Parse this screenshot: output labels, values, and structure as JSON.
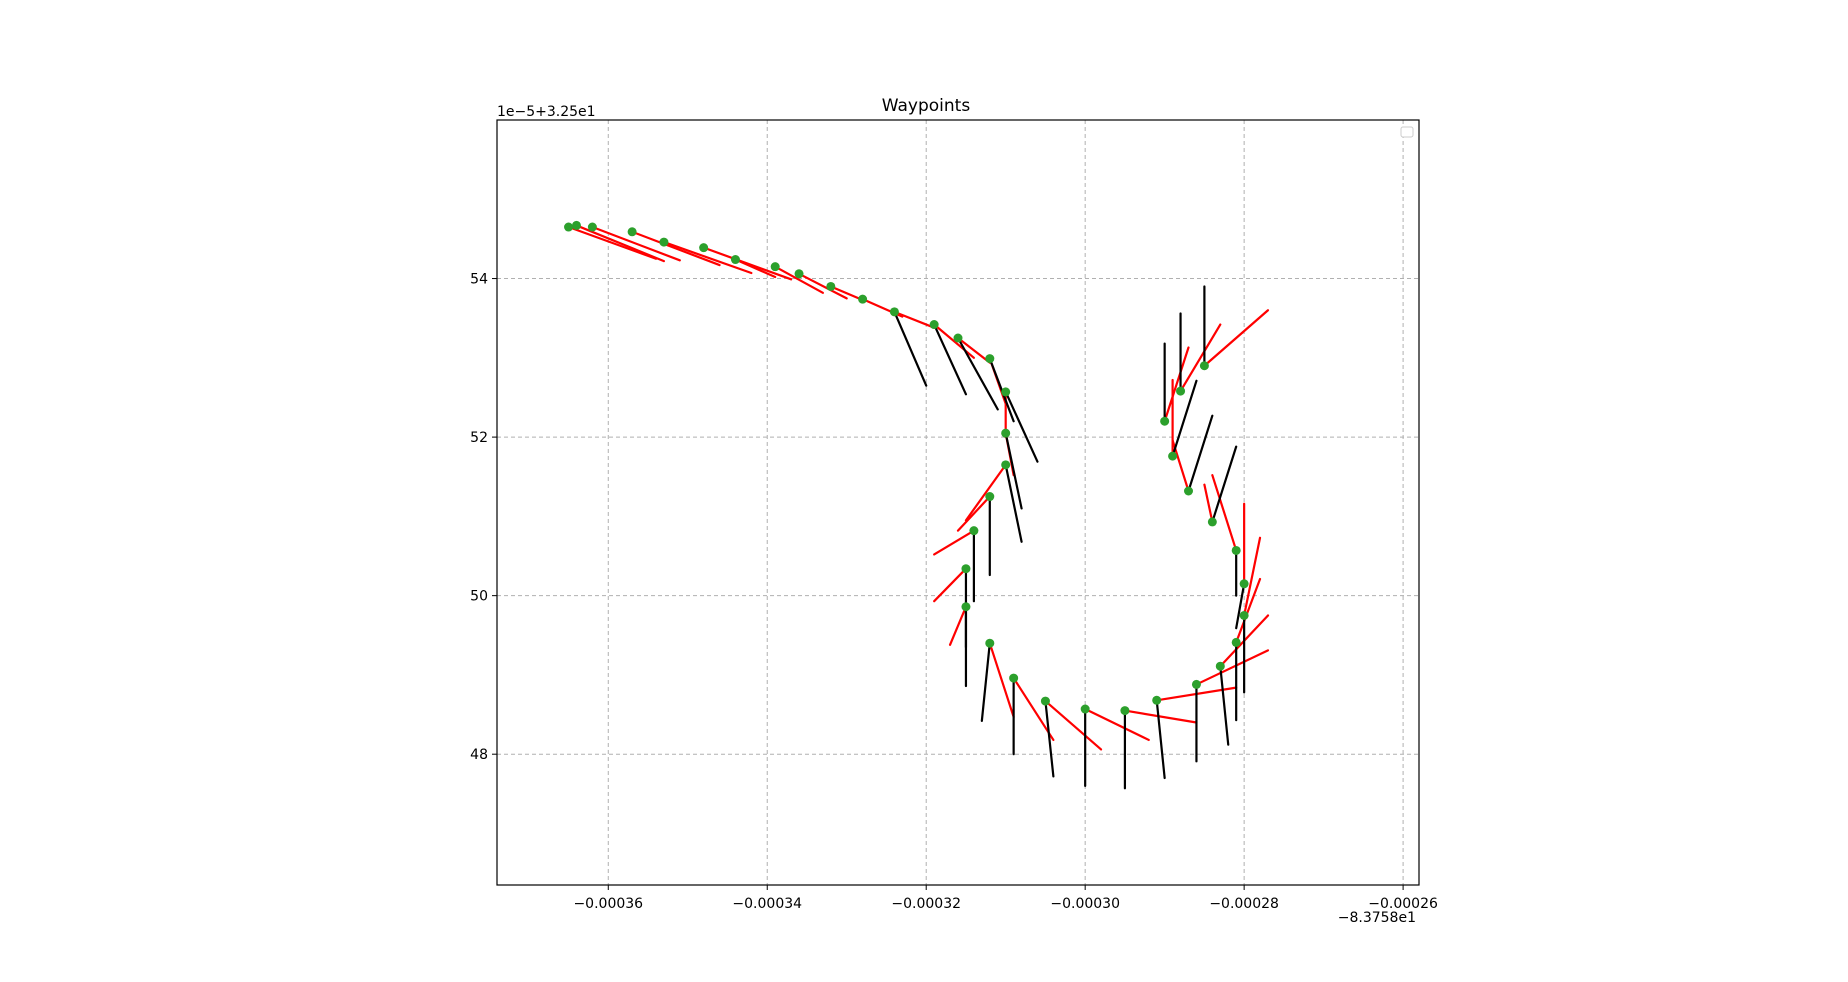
{
  "chart_data": {
    "type": "scatter",
    "title": "Waypoints",
    "x_offset_label": "−8.3758e1",
    "y_offset_label": "1e−5+3.25e1",
    "x_unit_scale": "relative to -83.758",
    "y_unit_scale": "1e-5, relative to 32.5",
    "xlim": [
      -0.000374,
      -0.000258
    ],
    "ylim": [
      46.35,
      56.0
    ],
    "xticks": [
      -0.00036,
      -0.00034,
      -0.00032,
      -0.0003,
      -0.00028,
      -0.00026
    ],
    "xtick_labels": [
      "−0.00036",
      "−0.00034",
      "−0.00032",
      "−0.00030",
      "−0.00028",
      "−0.00026"
    ],
    "yticks": [
      48,
      50,
      52,
      54
    ],
    "ytick_labels": [
      "48",
      "50",
      "52",
      "54"
    ],
    "grid": true,
    "grid_style": "dashed",
    "legend": "top-right (empty)",
    "colors": {
      "points": "#2ca02c",
      "heading_red": "#ff0000",
      "heading_black": "#000000",
      "grid": "#b0b0b0"
    },
    "waypoints": [
      {
        "x": -0.000365,
        "y": 54.65,
        "red": [
          -0.000354,
          54.25
        ],
        "black": null
      },
      {
        "x": -0.000364,
        "y": 54.67,
        "red": [
          -0.000353,
          54.22
        ],
        "black": null
      },
      {
        "x": -0.000362,
        "y": 54.65,
        "red": [
          -0.000351,
          54.23
        ],
        "black": null
      },
      {
        "x": -0.000357,
        "y": 54.59,
        "red": [
          -0.000346,
          54.17
        ],
        "black": null
      },
      {
        "x": -0.000353,
        "y": 54.46,
        "red": [
          -0.000342,
          54.07
        ],
        "black": null
      },
      {
        "x": -0.000348,
        "y": 54.39,
        "red": [
          -0.000337,
          53.99
        ],
        "black": null
      },
      {
        "x": -0.000344,
        "y": 54.24,
        "red": [
          -0.000339,
          54.02
        ],
        "black": null
      },
      {
        "x": -0.000339,
        "y": 54.15,
        "red": [
          -0.000333,
          53.82
        ],
        "black": null
      },
      {
        "x": -0.000336,
        "y": 54.06,
        "red": [
          -0.00033,
          53.75
        ],
        "black": null
      },
      {
        "x": -0.000332,
        "y": 53.9,
        "red": [
          -0.000328,
          53.73
        ],
        "black": null
      },
      {
        "x": -0.000328,
        "y": 53.74,
        "red": [
          -0.000323,
          53.52
        ],
        "black": null
      },
      {
        "x": -0.000324,
        "y": 53.58,
        "red": [
          -0.000319,
          53.38
        ],
        "black": [
          -0.00032,
          52.65
        ]
      },
      {
        "x": -0.000319,
        "y": 53.42,
        "red": [
          -0.000314,
          53.0
        ],
        "black": [
          -0.000315,
          52.54
        ]
      },
      {
        "x": -0.000316,
        "y": 53.25,
        "red": [
          -0.000312,
          52.94
        ],
        "black": [
          -0.000311,
          52.35
        ]
      },
      {
        "x": -0.000312,
        "y": 52.99,
        "red": [
          -0.00031,
          52.42
        ],
        "black": [
          -0.000309,
          52.2
        ]
      },
      {
        "x": -0.00031,
        "y": 52.57,
        "red": [
          -0.00031,
          52.0
        ],
        "black": [
          -0.000306,
          51.69
        ]
      },
      {
        "x": -0.00031,
        "y": 52.05,
        "red": [
          -0.000309,
          51.52
        ],
        "black": [
          -0.000308,
          51.1
        ]
      },
      {
        "x": -0.00031,
        "y": 51.65,
        "red": [
          -0.000315,
          50.95
        ],
        "black": [
          -0.000308,
          50.68
        ]
      },
      {
        "x": -0.000312,
        "y": 51.25,
        "red": [
          -0.000316,
          50.82
        ],
        "black": [
          -0.000312,
          50.26
        ]
      },
      {
        "x": -0.000314,
        "y": 50.82,
        "red": [
          -0.000319,
          50.52
        ],
        "black": [
          -0.000314,
          49.93
        ]
      },
      {
        "x": -0.000315,
        "y": 50.34,
        "red": [
          -0.000319,
          49.93
        ],
        "black": [
          -0.000315,
          49.35
        ]
      },
      {
        "x": -0.000315,
        "y": 49.86,
        "red": [
          -0.000317,
          49.38
        ],
        "black": [
          -0.000315,
          48.86
        ]
      },
      {
        "x": -0.000312,
        "y": 49.4,
        "red": [
          -0.000309,
          48.47
        ],
        "black": [
          -0.000313,
          48.42
        ]
      },
      {
        "x": -0.000309,
        "y": 48.96,
        "red": [
          -0.000304,
          48.18
        ],
        "black": [
          -0.000309,
          48.0
        ]
      },
      {
        "x": -0.000305,
        "y": 48.67,
        "red": [
          -0.000298,
          48.06
        ],
        "black": [
          -0.000304,
          47.72
        ]
      },
      {
        "x": -0.0003,
        "y": 48.57,
        "red": [
          -0.000292,
          48.18
        ],
        "black": [
          -0.0003,
          47.6
        ]
      },
      {
        "x": -0.000295,
        "y": 48.55,
        "red": [
          -0.000286,
          48.4
        ],
        "black": [
          -0.000295,
          47.57
        ]
      },
      {
        "x": -0.000291,
        "y": 48.68,
        "red": [
          -0.000281,
          48.84
        ],
        "black": [
          -0.00029,
          47.7
        ]
      },
      {
        "x": -0.000286,
        "y": 48.88,
        "red": [
          -0.000277,
          49.31
        ],
        "black": [
          -0.000286,
          47.91
        ]
      },
      {
        "x": -0.000283,
        "y": 49.11,
        "red": [
          -0.000277,
          49.75
        ],
        "black": [
          -0.000282,
          48.12
        ]
      },
      {
        "x": -0.000281,
        "y": 49.41,
        "red": [
          -0.000278,
          50.21
        ],
        "black": [
          -0.000281,
          48.43
        ]
      },
      {
        "x": -0.00028,
        "y": 49.75,
        "red": [
          -0.000278,
          50.73
        ],
        "black": [
          -0.00028,
          48.78
        ]
      },
      {
        "x": -0.00028,
        "y": 50.15,
        "red": [
          -0.00028,
          51.16
        ],
        "black": [
          -0.000281,
          49.59
        ]
      },
      {
        "x": -0.000281,
        "y": 50.57,
        "red": [
          -0.000284,
          51.52
        ],
        "black": [
          -0.000281,
          50.0
        ]
      },
      {
        "x": -0.000284,
        "y": 50.93,
        "red": [
          -0.000285,
          51.4
        ],
        "black": [
          -0.000281,
          51.88
        ]
      },
      {
        "x": -0.000287,
        "y": 51.32,
        "red": [
          -0.000289,
          51.96
        ],
        "black": [
          -0.000284,
          52.27
        ]
      },
      {
        "x": -0.000289,
        "y": 51.76,
        "red": [
          -0.000289,
          52.72
        ],
        "black": [
          -0.000286,
          52.71
        ]
      },
      {
        "x": -0.00029,
        "y": 52.2,
        "red": [
          -0.000287,
          53.13
        ],
        "black": [
          -0.00029,
          53.18
        ]
      },
      {
        "x": -0.000288,
        "y": 52.58,
        "red": [
          -0.000283,
          53.42
        ],
        "black": [
          -0.000288,
          53.56
        ]
      },
      {
        "x": -0.000285,
        "y": 52.9,
        "red": [
          -0.000277,
          53.6
        ],
        "black": [
          -0.000285,
          53.9
        ]
      }
    ]
  }
}
